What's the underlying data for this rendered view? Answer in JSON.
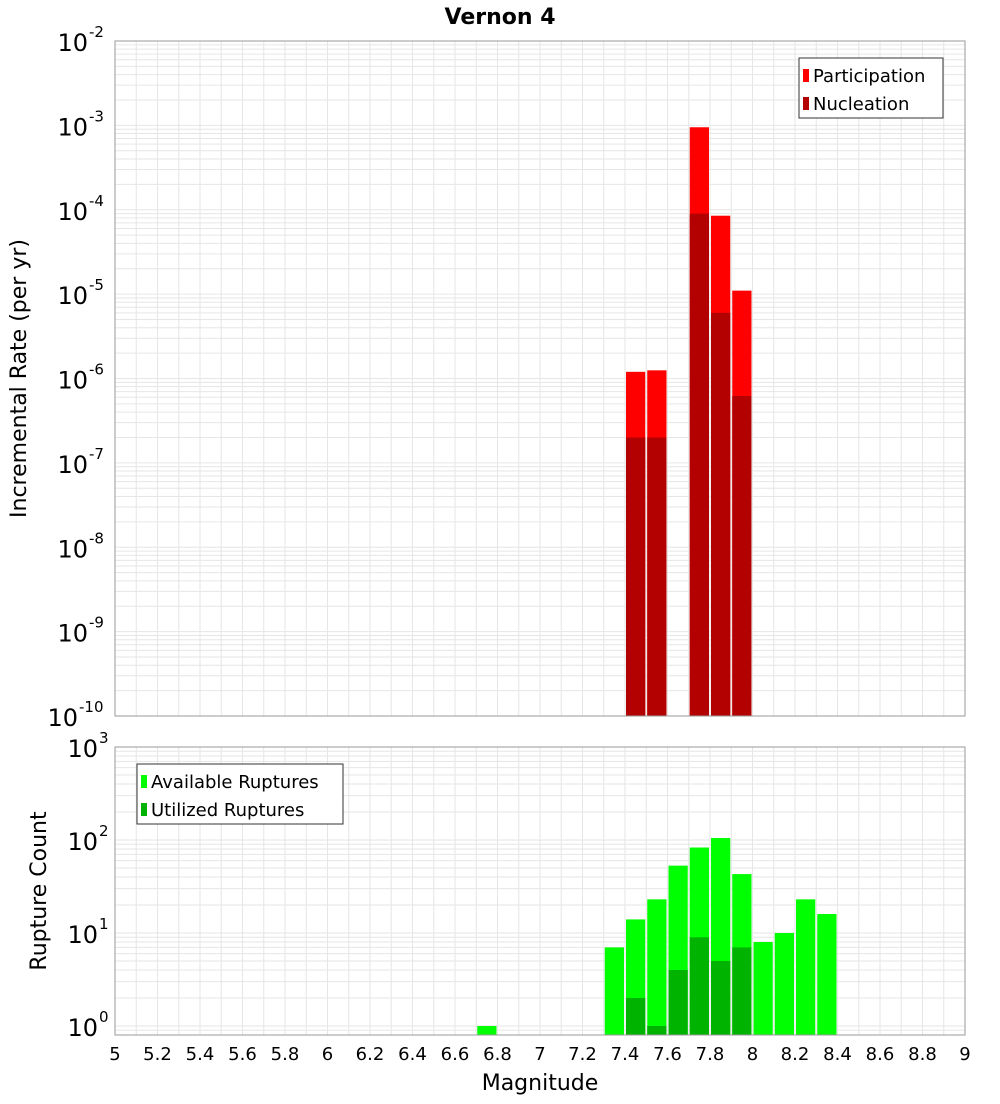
{
  "title": "Vernon 4",
  "x_label": "Magnitude",
  "x_ticks": [
    "5",
    "5.2",
    "5.4",
    "5.6",
    "5.8",
    "6",
    "6.2",
    "6.4",
    "6.6",
    "6.8",
    "7",
    "7.2",
    "7.4",
    "7.6",
    "7.8",
    "8",
    "8.2",
    "8.4",
    "8.6",
    "8.8",
    "9"
  ],
  "colors": {
    "participation": "#ff0000",
    "nucleation": "#b30000",
    "available": "#00ff00",
    "utilized": "#00b300",
    "grid": "#e6e6e6",
    "axis": "#999999"
  },
  "chart_data": [
    {
      "type": "bar",
      "title": "Vernon 4",
      "xlabel": "Magnitude",
      "ylabel": "Incremental Rate (per yr)",
      "yscale": "log",
      "xlim": [
        5,
        9
      ],
      "ylim": [
        1e-10,
        0.01
      ],
      "bar_width": 0.1,
      "y_ticks": [
        {
          "base": "10",
          "exp": "-10"
        },
        {
          "base": "10",
          "exp": "-9"
        },
        {
          "base": "10",
          "exp": "-8"
        },
        {
          "base": "10",
          "exp": "-7"
        },
        {
          "base": "10",
          "exp": "-6"
        },
        {
          "base": "10",
          "exp": "-5"
        },
        {
          "base": "10",
          "exp": "-4"
        },
        {
          "base": "10",
          "exp": "-3"
        },
        {
          "base": "10",
          "exp": "-2"
        }
      ],
      "legend_position": "top-right",
      "series": [
        {
          "name": "Participation",
          "x": [
            7.45,
            7.55,
            7.75,
            7.85,
            7.95
          ],
          "values": [
            1.2e-06,
            1.25e-06,
            0.00095,
            8.5e-05,
            1.1e-05
          ]
        },
        {
          "name": "Nucleation",
          "x": [
            7.45,
            7.55,
            7.75,
            7.85,
            7.95
          ],
          "values": [
            2e-07,
            2e-07,
            9e-05,
            6e-06,
            6.2e-07
          ]
        }
      ]
    },
    {
      "type": "bar",
      "xlabel": "Magnitude",
      "ylabel": "Rupture Count",
      "yscale": "log",
      "xlim": [
        5,
        9
      ],
      "ylim": [
        0.8,
        1000
      ],
      "bar_width": 0.1,
      "y_ticks": [
        {
          "base": "10",
          "exp": "0",
          "value": 1
        },
        {
          "base": "10",
          "exp": "1",
          "value": 10
        },
        {
          "base": "10",
          "exp": "2",
          "value": 100
        },
        {
          "base": "10",
          "exp": "3",
          "value": 1000
        }
      ],
      "legend_position": "top-left",
      "series": [
        {
          "name": "Available Ruptures",
          "x": [
            6.75,
            7.35,
            7.45,
            7.55,
            7.65,
            7.75,
            7.85,
            7.95,
            8.05,
            8.15,
            8.25,
            8.35
          ],
          "values": [
            1,
            7,
            14,
            23,
            53,
            83,
            105,
            43,
            8,
            10,
            23,
            16
          ]
        },
        {
          "name": "Utilized Ruptures",
          "x": [
            7.45,
            7.55,
            7.65,
            7.75,
            7.85,
            7.95
          ],
          "values": [
            2,
            1,
            4,
            9,
            5,
            7
          ]
        }
      ]
    }
  ]
}
